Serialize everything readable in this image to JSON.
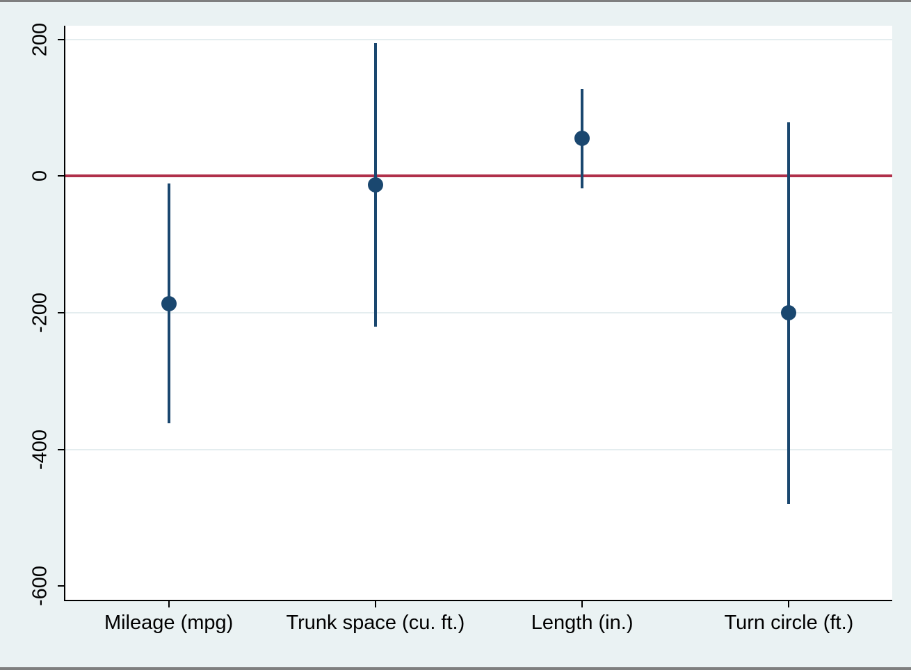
{
  "figure": {
    "title": "",
    "background_color": "#eaf2f3",
    "plot_background_color": "#ffffff",
    "frame_border_color": "#7f7f7f"
  },
  "chart_data": {
    "type": "scatter",
    "subtype": "coefficient-plot-with-confidence-intervals",
    "title": "",
    "xlabel": "",
    "ylabel": "",
    "categories": [
      "Mileage (mpg)",
      "Trunk space (cu. ft.)",
      "Length (in.)",
      "Turn circle (ft.)"
    ],
    "points": [
      {
        "category": "Mileage (mpg)",
        "estimate": -187,
        "ci_low": -362,
        "ci_high": -11
      },
      {
        "category": "Trunk space (cu. ft.)",
        "estimate": -13,
        "ci_low": -220,
        "ci_high": 195
      },
      {
        "category": "Length (in.)",
        "estimate": 55,
        "ci_low": -18,
        "ci_high": 127
      },
      {
        "category": "Turn circle (ft.)",
        "estimate": -200,
        "ci_low": -480,
        "ci_high": 79
      }
    ],
    "y_ticks": [
      200,
      0,
      -200,
      -400,
      -600
    ],
    "y_tick_labels": [
      "200",
      "0",
      "-200",
      "-400",
      "-600"
    ],
    "grid_ticks": [
      200,
      -200,
      -400
    ],
    "ylim": [
      -620,
      220
    ],
    "refline_y": 0,
    "grid": true,
    "legend": "none",
    "colors": {
      "marker": "#1a476f",
      "ci_line": "#1a476f",
      "refline": "#b0304a",
      "grid": "#e4edef",
      "axis": "#000000",
      "tick_text": "#000000"
    }
  }
}
